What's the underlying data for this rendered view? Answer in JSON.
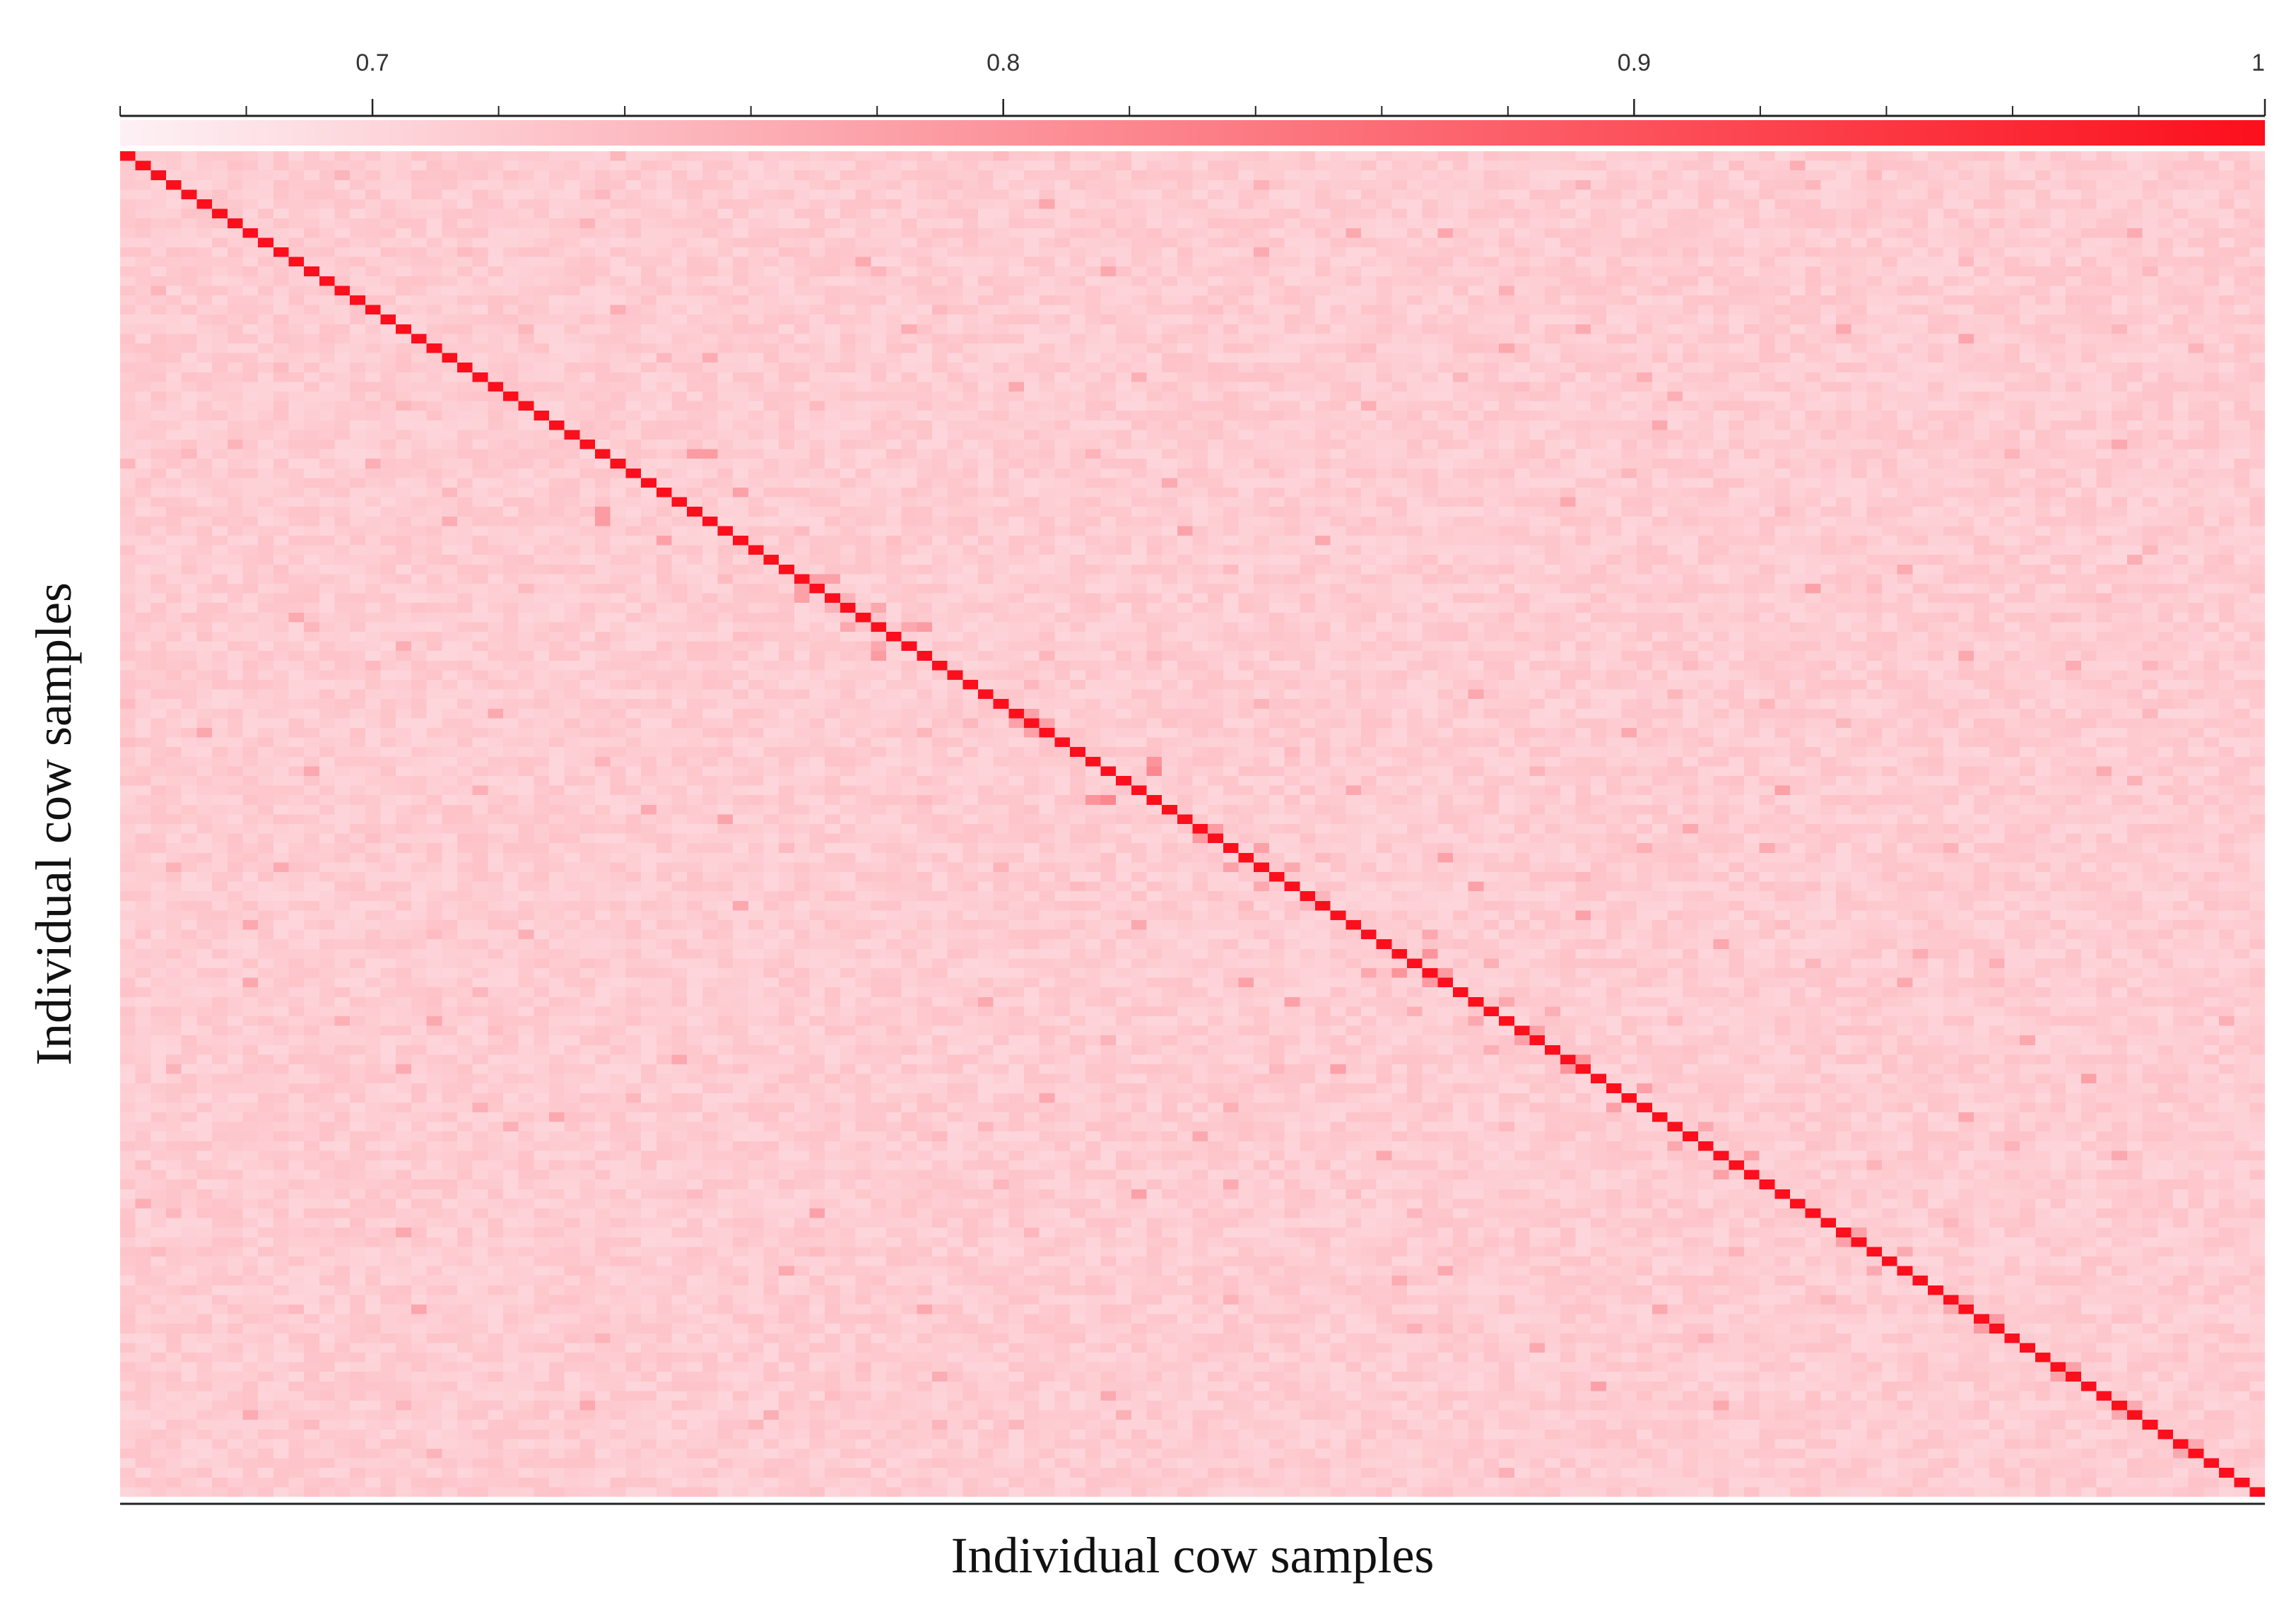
{
  "chart_data": {
    "type": "heatmap",
    "title": "",
    "xlabel": "Individual cow samples",
    "ylabel": "Individual cow samples",
    "n_samples": 140,
    "colorbar": {
      "position": "top",
      "range": [
        0.66,
        1.0
      ],
      "tick_values": [
        0.7,
        0.8,
        0.9,
        1.0
      ],
      "tick_labels": [
        "0.7",
        "0.8",
        "0.9",
        "1"
      ],
      "minor_tick_step": 0.02,
      "color_low": "#fdf1f5",
      "color_high": "#fb0f1c"
    },
    "diagonal_value": 1.0,
    "off_diagonal_range": [
      0.69,
      0.84
    ],
    "off_diagonal_typical": 0.715,
    "highlighted_pairs": [
      [
        31,
        37,
        0.79
      ],
      [
        31,
        38,
        0.79
      ],
      [
        35,
        40,
        0.78
      ],
      [
        44,
        45,
        0.78
      ],
      [
        44,
        46,
        0.78
      ],
      [
        49,
        51,
        0.77
      ],
      [
        49,
        52,
        0.79
      ],
      [
        58,
        59,
        0.78
      ],
      [
        59,
        60,
        0.78
      ],
      [
        63,
        67,
        0.8
      ],
      [
        64,
        67,
        0.82
      ],
      [
        70,
        71,
        0.79
      ],
      [
        72,
        74,
        0.78
      ],
      [
        74,
        76,
        0.77
      ],
      [
        81,
        85,
        0.77
      ],
      [
        83,
        85,
        0.8
      ],
      [
        85,
        86,
        0.79
      ],
      [
        88,
        90,
        0.77
      ],
      [
        91,
        92,
        0.78
      ],
      [
        94,
        95,
        0.8
      ],
      [
        97,
        99,
        0.78
      ],
      [
        101,
        103,
        0.77
      ],
      [
        104,
        106,
        0.78
      ],
      [
        112,
        113,
        0.78
      ],
      [
        119,
        120,
        0.77
      ],
      [
        121,
        122,
        0.79
      ],
      [
        126,
        127,
        0.78
      ],
      [
        130,
        131,
        0.77
      ],
      [
        134,
        135,
        0.77
      ],
      [
        20,
        90,
        0.77
      ],
      [
        28,
        100,
        0.77
      ],
      [
        45,
        110,
        0.78
      ],
      [
        60,
        98,
        0.77
      ],
      [
        66,
        108,
        0.78
      ],
      [
        70,
        102,
        0.77
      ],
      [
        76,
        88,
        0.78
      ],
      [
        82,
        104,
        0.77
      ],
      [
        86,
        116,
        0.77
      ],
      [
        92,
        124,
        0.77
      ],
      [
        96,
        128,
        0.78
      ],
      [
        100,
        120,
        0.77
      ],
      [
        104,
        130,
        0.77
      ],
      [
        52,
        120,
        0.77
      ],
      [
        40,
        78,
        0.77
      ],
      [
        12,
        64,
        0.77
      ],
      [
        24,
        58,
        0.77
      ],
      [
        36,
        94,
        0.77
      ],
      [
        18,
        112,
        0.77
      ],
      [
        8,
        80,
        0.77
      ],
      [
        30,
        130,
        0.77
      ],
      [
        56,
        88,
        0.77
      ],
      [
        66,
        80,
        0.77
      ],
      [
        73,
        86,
        0.78
      ],
      [
        79,
        95,
        0.78
      ]
    ]
  }
}
